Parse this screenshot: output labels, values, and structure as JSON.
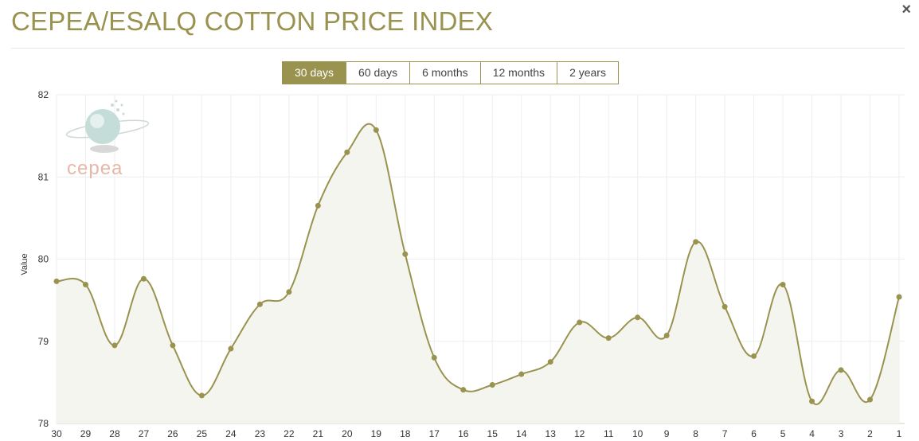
{
  "title": "CEPEA/ESALQ COTTON PRICE INDEX",
  "close_label": "×",
  "range_buttons": [
    {
      "label": "30 days",
      "active": true
    },
    {
      "label": "60 days",
      "active": false
    },
    {
      "label": "6 months",
      "active": false
    },
    {
      "label": "12 months",
      "active": false
    },
    {
      "label": "2 years",
      "active": false
    }
  ],
  "watermark_text": "cepea",
  "colors": {
    "accent": "#9a9350",
    "line": "#9a9350",
    "fill": "#f5f5f0",
    "grid": "#eeeeee",
    "watermark": "#e6b8a8"
  },
  "chart_data": {
    "type": "area",
    "title": "",
    "xlabel": "",
    "ylabel": "Value",
    "ylim": [
      78,
      82
    ],
    "yticks": [
      78,
      79,
      80,
      81,
      82
    ],
    "grid": true,
    "smooth": true,
    "categories": [
      "30",
      "29",
      "28",
      "27",
      "26",
      "25",
      "24",
      "23",
      "22",
      "21",
      "20",
      "19",
      "18",
      "17",
      "16",
      "15",
      "14",
      "13",
      "12",
      "11",
      "10",
      "9",
      "8",
      "7",
      "6",
      "5",
      "4",
      "3",
      "2",
      "1"
    ],
    "series": [
      {
        "values": [
          79.73,
          79.69,
          78.95,
          79.76,
          78.95,
          78.34,
          78.91,
          79.45,
          79.6,
          80.65,
          81.3,
          81.57,
          80.06,
          78.8,
          78.41,
          78.47,
          78.6,
          78.75,
          79.23,
          79.04,
          79.29,
          79.07,
          80.21,
          79.42,
          78.82,
          79.69,
          78.27,
          78.65,
          78.29,
          79.54
        ]
      }
    ]
  }
}
